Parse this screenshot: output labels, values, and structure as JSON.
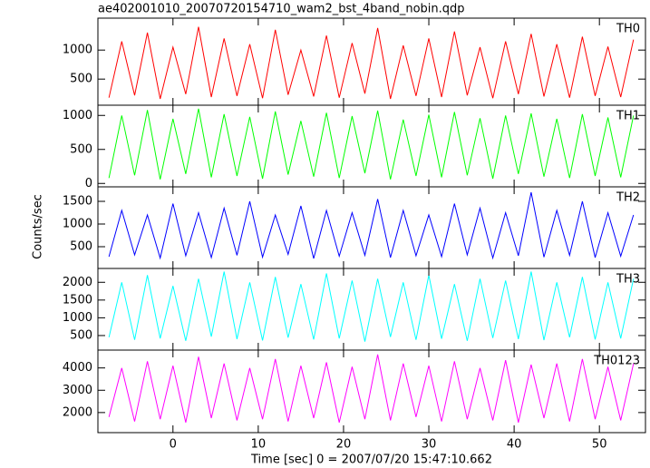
{
  "chart_data": [
    {
      "type": "line",
      "title": "ae402001010_20070720154710_wam2_bst_4band_nobin.qdp",
      "x": [
        -7.5,
        -6,
        -4.5,
        -3,
        -1.5,
        0,
        1.5,
        3,
        4.5,
        6,
        7.5,
        9,
        10.5,
        12,
        13.5,
        15,
        16.5,
        18,
        19.5,
        21,
        22.5,
        24,
        25.5,
        27,
        28.5,
        30,
        31.5,
        33,
        34.5,
        36,
        37.5,
        39,
        40.5,
        42,
        43.5,
        45,
        46.5,
        48,
        49.5,
        51,
        52.5,
        54
      ],
      "series": [
        {
          "name": "TH0",
          "color": "#ff0000",
          "values": [
            180,
            1150,
            220,
            1300,
            160,
            1050,
            240,
            1400,
            190,
            1200,
            210,
            1100,
            170,
            1350,
            230,
            1000,
            200,
            1250,
            180,
            1120,
            250,
            1380,
            160,
            1080,
            210,
            1200,
            190,
            1320,
            220,
            1050,
            170,
            1150,
            240,
            1280,
            200,
            1100,
            180,
            1230,
            210,
            1060,
            190,
            1180
          ]
        }
      ],
      "xlim": [
        -8.8,
        55.4
      ],
      "ylim": [
        50,
        1550
      ],
      "yticks": [
        500,
        1000
      ]
    },
    {
      "type": "line",
      "x": [
        -7.5,
        -6,
        -4.5,
        -3,
        -1.5,
        0,
        1.5,
        3,
        4.5,
        6,
        7.5,
        9,
        10.5,
        12,
        13.5,
        15,
        16.5,
        18,
        19.5,
        21,
        22.5,
        24,
        25.5,
        27,
        28.5,
        30,
        31.5,
        33,
        34.5,
        36,
        37.5,
        39,
        40.5,
        42,
        43.5,
        45,
        46.5,
        48,
        49.5,
        51,
        52.5,
        54
      ],
      "series": [
        {
          "name": "TH1",
          "color": "#00ff00",
          "values": [
            80,
            1000,
            120,
            1080,
            60,
            950,
            140,
            1100,
            90,
            1020,
            110,
            980,
            70,
            1060,
            130,
            920,
            100,
            1040,
            80,
            990,
            150,
            1070,
            60,
            940,
            110,
            1010,
            90,
            1050,
            120,
            960,
            70,
            1000,
            140,
            1030,
            100,
            950,
            80,
            1020,
            110,
            970,
            90,
            1000
          ]
        }
      ],
      "xlim": [
        -8.8,
        55.4
      ],
      "ylim": [
        -50,
        1150
      ],
      "yticks": [
        0,
        500,
        1000
      ]
    },
    {
      "type": "line",
      "ylabel": "Counts/sec",
      "x": [
        -7.5,
        -6,
        -4.5,
        -3,
        -1.5,
        0,
        1.5,
        3,
        4.5,
        6,
        7.5,
        9,
        10.5,
        12,
        13.5,
        15,
        16.5,
        18,
        19.5,
        21,
        22.5,
        24,
        25.5,
        27,
        28.5,
        30,
        31.5,
        33,
        34.5,
        36,
        37.5,
        39,
        40.5,
        42,
        43.5,
        45,
        46.5,
        48,
        49.5,
        51,
        52.5,
        54
      ],
      "series": [
        {
          "name": "TH2",
          "color": "#0000ff",
          "values": [
            280,
            1300,
            320,
            1200,
            250,
            1450,
            300,
            1250,
            260,
            1350,
            310,
            1500,
            270,
            1200,
            330,
            1400,
            240,
            1300,
            290,
            1250,
            310,
            1550,
            260,
            1300,
            300,
            1200,
            280,
            1450,
            320,
            1350,
            250,
            1250,
            300,
            1700,
            270,
            1300,
            310,
            1500,
            260,
            1250,
            290,
            1200
          ]
        }
      ],
      "xlim": [
        -8.8,
        55.4
      ],
      "ylim": [
        20,
        1820
      ],
      "yticks": [
        500,
        1000,
        1500
      ]
    },
    {
      "type": "line",
      "x": [
        -7.5,
        -6,
        -4.5,
        -3,
        -1.5,
        0,
        1.5,
        3,
        4.5,
        6,
        7.5,
        9,
        10.5,
        12,
        13.5,
        15,
        16.5,
        18,
        19.5,
        21,
        22.5,
        24,
        25.5,
        27,
        28.5,
        30,
        31.5,
        33,
        34.5,
        36,
        37.5,
        39,
        40.5,
        42,
        43.5,
        45,
        46.5,
        48,
        49.5,
        51,
        52.5,
        54
      ],
      "series": [
        {
          "name": "TH3",
          "color": "#00ffff",
          "values": [
            450,
            2000,
            380,
            2200,
            420,
            1900,
            350,
            2100,
            470,
            2300,
            400,
            2000,
            360,
            2150,
            440,
            1950,
            390,
            2250,
            420,
            2050,
            330,
            2100,
            460,
            2000,
            380,
            2200,
            410,
            1950,
            350,
            2100,
            430,
            2050,
            400,
            2300,
            370,
            2000,
            450,
            2150,
            390,
            2000,
            420,
            2100
          ]
        }
      ],
      "xlim": [
        -8.8,
        55.4
      ],
      "ylim": [
        90,
        2390
      ],
      "yticks": [
        500,
        1000,
        1500,
        2000
      ]
    },
    {
      "type": "line",
      "xlabel": "Time [sec] 0 = 2007/07/20 15:47:10.662",
      "x": [
        -7.5,
        -6,
        -4.5,
        -3,
        -1.5,
        0,
        1.5,
        3,
        4.5,
        6,
        7.5,
        9,
        10.5,
        12,
        13.5,
        15,
        16.5,
        18,
        19.5,
        21,
        22.5,
        24,
        25.5,
        27,
        28.5,
        30,
        31.5,
        33,
        34.5,
        36,
        37.5,
        39,
        40.5,
        42,
        43.5,
        45,
        46.5,
        48,
        49.5,
        51,
        52.5,
        54
      ],
      "series": [
        {
          "name": "TH0123",
          "color": "#ff00ff",
          "values": [
            1800,
            4000,
            1600,
            4300,
            1700,
            4100,
            1550,
            4500,
            1750,
            4200,
            1650,
            4000,
            1700,
            4400,
            1600,
            4100,
            1750,
            4250,
            1550,
            4050,
            1700,
            4600,
            1650,
            4200,
            1800,
            4100,
            1600,
            4300,
            1700,
            4000,
            1650,
            4350,
            1550,
            4150,
            1750,
            4200,
            1600,
            4400,
            1700,
            4050,
            1650,
            4200
          ]
        }
      ],
      "xlim": [
        -8.8,
        55.4
      ],
      "ylim": [
        1100,
        4800
      ],
      "yticks": [
        2000,
        3000,
        4000
      ],
      "xticks": [
        0,
        10,
        20,
        30,
        40,
        50
      ]
    }
  ]
}
